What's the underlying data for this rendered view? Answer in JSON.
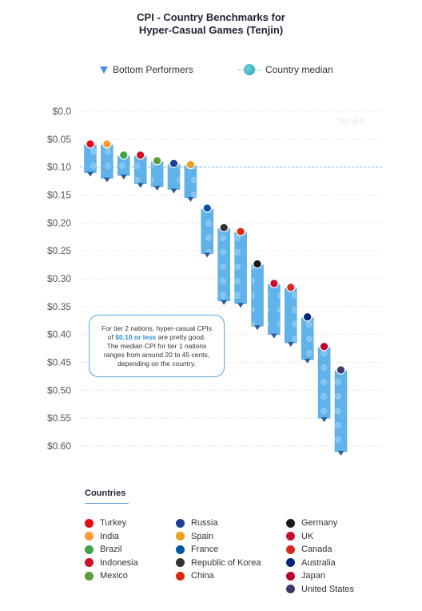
{
  "title_line1": "CPI - Country Benchmarks for",
  "title_line2": "Hyper-Casual Games (Tenjin)",
  "legend": {
    "bottom_label": "Bottom Performers",
    "median_label": "Country median"
  },
  "watermark": "tenjin",
  "callout": {
    "line1": "For tier 2 nations, hyper-casual CPIs",
    "line2_pre": "of ",
    "line2_hl": "$0.10 or less",
    "line2_post": " are pretty good.",
    "line3": "The median CPI for tier 1 nations",
    "line4": "ranges from around 20 to 45 cents,",
    "line5": "depending on the country."
  },
  "countries_title": "Countries",
  "countries_col1": [
    {
      "name": "Turkey",
      "color": "#e30a17"
    },
    {
      "name": "India",
      "color": "#ff9933"
    },
    {
      "name": "Brazil",
      "color": "#3fa34d"
    },
    {
      "name": "Indonesia",
      "color": "#ce1126"
    },
    {
      "name": "Mexico",
      "color": "#5a9e3a"
    }
  ],
  "countries_col2": [
    {
      "name": "Russia",
      "color": "#1c3f94"
    },
    {
      "name": "Spain",
      "color": "#e8a317"
    },
    {
      "name": "France",
      "color": "#0055a4"
    },
    {
      "name": "Republic of Korea",
      "color": "#333333"
    },
    {
      "name": "China",
      "color": "#de2910"
    }
  ],
  "countries_col3": [
    {
      "name": "Germany",
      "color": "#1a1a1a"
    },
    {
      "name": "UK",
      "color": "#c8102e"
    },
    {
      "name": "Canada",
      "color": "#d52b1e"
    },
    {
      "name": "Australia",
      "color": "#00247d"
    },
    {
      "name": "Japan",
      "color": "#bc002d"
    },
    {
      "name": "United States",
      "color": "#3c3b6e"
    }
  ],
  "chart_data": {
    "type": "bar",
    "subtype": "floating-range",
    "y_tick_labels": [
      "$0.0",
      "$0.05",
      "$0.10",
      "$0.15",
      "$0.20",
      "$0.25",
      "$0.30",
      "$0.35",
      "$0.40",
      "$0.45",
      "$0.50",
      "$0.55",
      "$0.60"
    ],
    "ylim": [
      0,
      0.6
    ],
    "y_inverted": true,
    "median_line": 0.1,
    "grid": true,
    "series": [
      {
        "name": "Country median",
        "values": [
          0.06,
          0.06,
          0.08,
          0.08,
          0.09,
          0.095,
          0.097,
          0.175,
          0.21,
          0.217,
          0.275,
          0.31,
          0.317,
          0.37,
          0.423,
          0.465
        ]
      },
      {
        "name": "Bottom Performers",
        "values": [
          0.11,
          0.12,
          0.115,
          0.13,
          0.135,
          0.14,
          0.155,
          0.255,
          0.34,
          0.345,
          0.385,
          0.4,
          0.415,
          0.445,
          0.55,
          0.61
        ]
      }
    ],
    "bar_colors": [
      "#e30a17",
      "#ff9933",
      "#3fa34d",
      "#ce1126",
      "#5a9e3a",
      "#1c3f94",
      "#e8a317",
      "#0055a4",
      "#333333",
      "#de2910",
      "#1a1a1a",
      "#c8102e",
      "#d52b1e",
      "#00247d",
      "#bc002d",
      "#3c3b6e"
    ]
  }
}
